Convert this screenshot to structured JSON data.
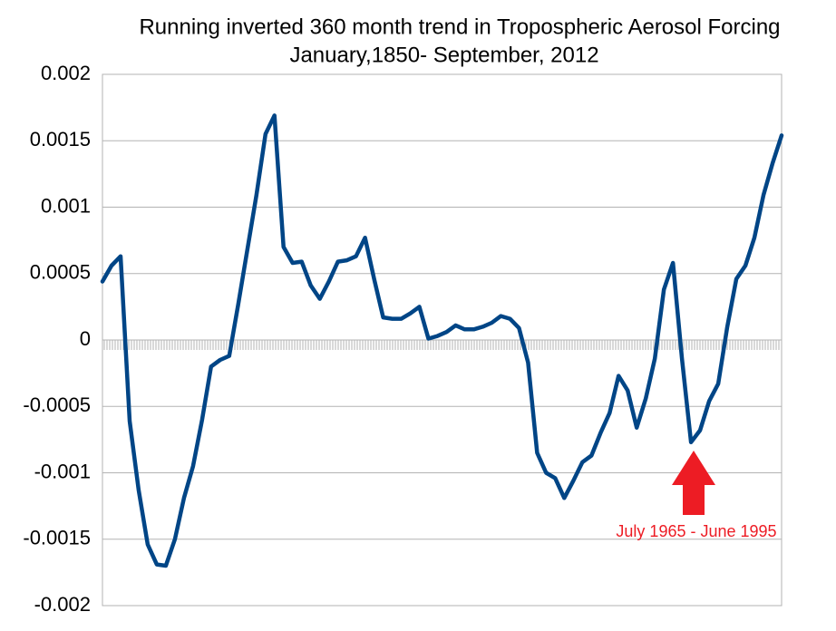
{
  "chart_data": {
    "type": "line",
    "title": "Running inverted 360 month trend in Tropospheric Aerosol Forcing",
    "subtitle": "January,1850- September, 2012",
    "annotation": "July 1965 - June 1995",
    "series": [
      {
        "color": "#004586",
        "values": [
          0.00044,
          0.00056,
          0.00063,
          -0.00061,
          -0.00113,
          -0.00154,
          -0.00169,
          -0.0017,
          -0.0015,
          -0.00119,
          -0.00095,
          -0.0006,
          -0.0002,
          -0.00015,
          -0.00012,
          0.00027,
          0.00068,
          0.00109,
          0.00155,
          0.00169,
          0.0007,
          0.00058,
          0.00059,
          0.00041,
          0.00031,
          0.00044,
          0.00059,
          0.0006,
          0.00063,
          0.00077,
          0.00046,
          0.00017,
          0.00016,
          0.00016,
          0.0002,
          0.00025,
          1e-05,
          3e-05,
          6e-05,
          0.00011,
          8e-05,
          8e-05,
          0.0001,
          0.00013,
          0.00018,
          0.00016,
          9e-05,
          -0.00017,
          -0.00085,
          -0.001,
          -0.00104,
          -0.00119,
          -0.00106,
          -0.00092,
          -0.00087,
          -0.0007,
          -0.00055,
          -0.00027,
          -0.00038,
          -0.00066,
          -0.00044,
          -0.00014,
          0.00038,
          0.00058,
          -0.00014,
          -0.00077,
          -0.00068,
          -0.00046,
          -0.00033,
          0.0001,
          0.00046,
          0.00056,
          0.00077,
          0.00109,
          0.00133,
          0.00154
        ]
      }
    ],
    "ylim": [
      -0.002,
      0.002
    ],
    "yticks": [
      0.002,
      0.0015,
      0.001,
      0.0005,
      0,
      -0.0005,
      -0.001,
      -0.0015,
      -0.002
    ],
    "grid": true
  }
}
